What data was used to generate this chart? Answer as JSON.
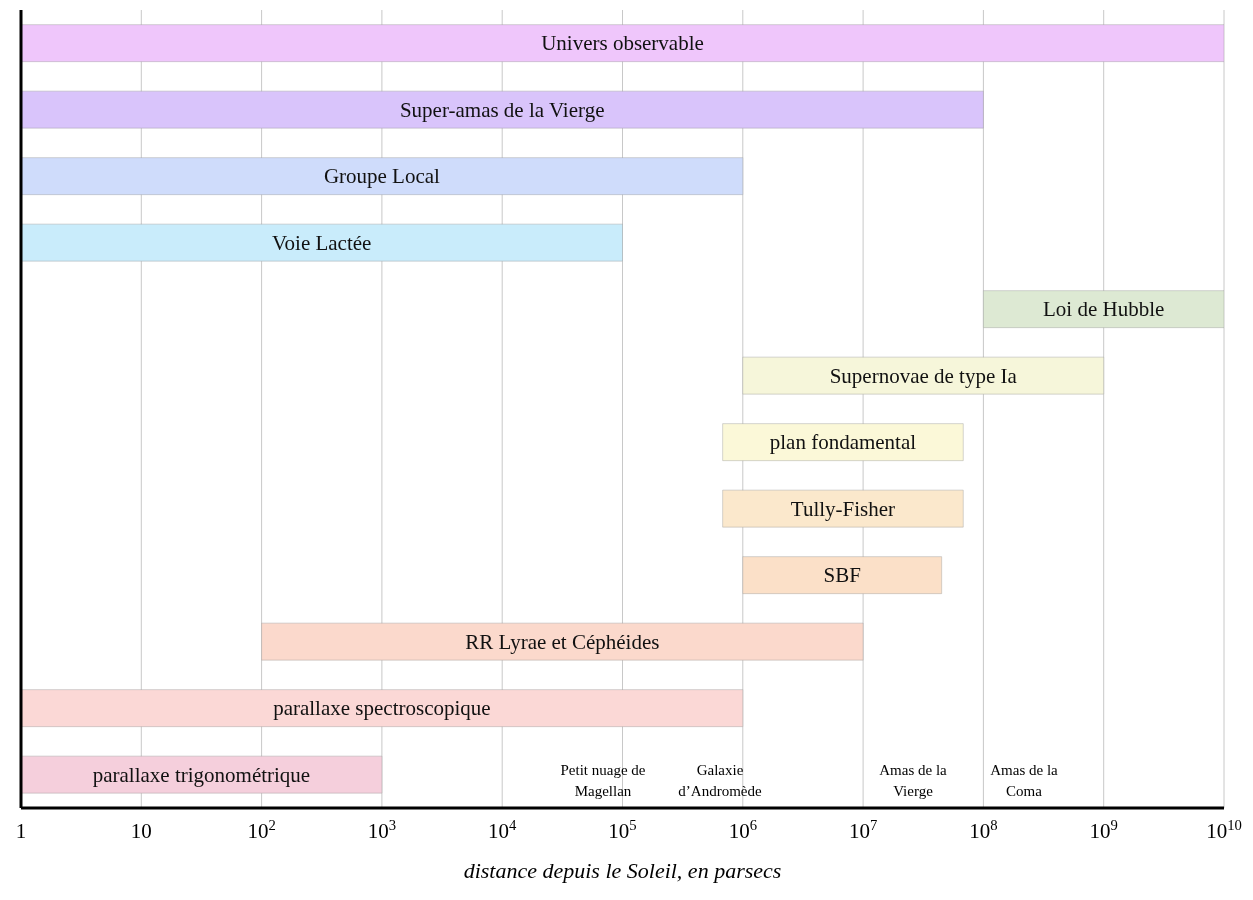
{
  "chart_data": {
    "type": "bar",
    "orientation": "horizontal",
    "xlabel": "distance depuis le Soleil, en parsecs",
    "categories": [
      "Univers observable",
      "Super-amas de la Vierge",
      "Groupe Local",
      "Voie Lactée",
      "Loi de Hubble",
      "Supernovae de type Ia",
      "plan fondamental",
      "Tully-Fisher",
      "SBF",
      "RR Lyrae et Céphéides",
      "parallaxe spectroscopique",
      "parallaxe trigonométrique"
    ],
    "base": [
      1,
      1,
      1,
      1,
      100000000,
      1000000,
      680000,
      680000,
      1000000,
      100,
      1,
      1
    ],
    "values": [
      9999999999,
      99999999,
      999999,
      99999,
      9900000000,
      999000000,
      67320000,
      67320000,
      44000000,
      9999900,
      999999,
      999
    ],
    "colors": [
      "#efc6fb",
      "#d9c4fb",
      "#cfdcfb",
      "#c9ecfb",
      "#dde9d3",
      "#f6f6da",
      "#fbf8d8",
      "#fbe8cc",
      "#fbe0c8",
      "#fbd9cc",
      "#fbd8d6",
      "#f5cfdc"
    ],
    "log": "x",
    "xlim": [
      1,
      10000000000
    ],
    "xticks": [
      1,
      10,
      {
        "value": 100,
        "label": "10$^{2}$"
      },
      {
        "value": 1000,
        "label": "10$^{3}$"
      },
      {
        "value": 10000,
        "label": "10$^{4}$"
      },
      {
        "value": 100000,
        "label": "10$^{5}$"
      },
      {
        "value": 1000000,
        "label": "10$^{6}$"
      },
      {
        "value": 10000000,
        "label": "10$^{7}$"
      },
      {
        "value": 100000000,
        "label": "10$^{8}$"
      },
      {
        "value": 1000000000,
        "label": "10$^{9}$"
      },
      {
        "value": 10000000000,
        "label": "10$^{10}$"
      }
    ],
    "grid": "x",
    "tick_labels": "x",
    "legend": false,
    "annotations": [
      "Petit nuage de Magellan",
      "Galaxie d’Andromède",
      "Amas de la Vierge",
      "Amas de la Coma"
    ]
  }
}
